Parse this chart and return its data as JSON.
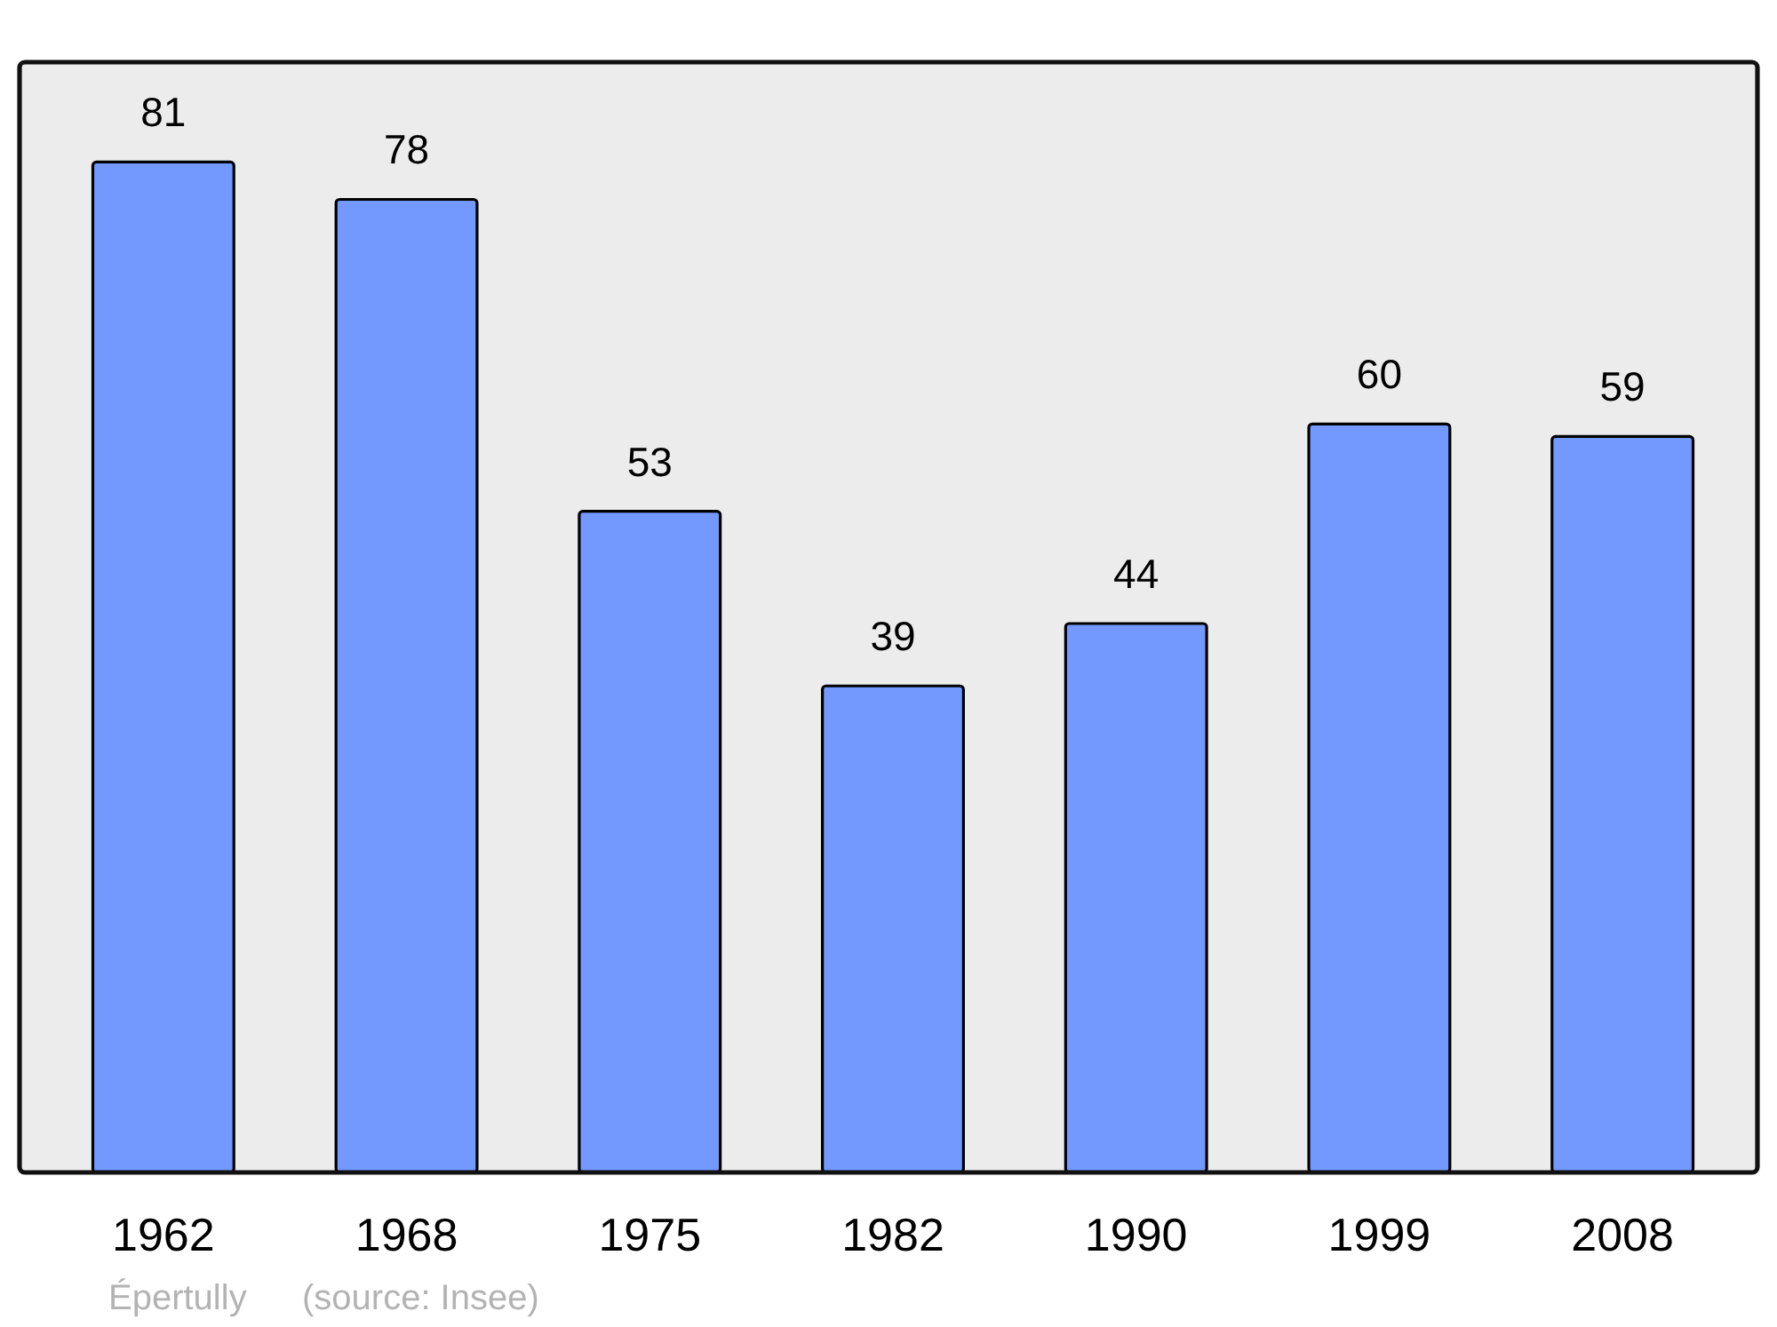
{
  "chart_data": {
    "type": "bar",
    "categories": [
      "1962",
      "1968",
      "1975",
      "1982",
      "1990",
      "1999",
      "2008"
    ],
    "values": [
      81,
      78,
      53,
      39,
      44,
      60,
      59
    ],
    "color": "#7399ff",
    "ylim": [
      0,
      89
    ],
    "tick_labels": "x",
    "data_labels": true,
    "annotations": [
      "Épertully",
      "(source: Insee)"
    ]
  }
}
